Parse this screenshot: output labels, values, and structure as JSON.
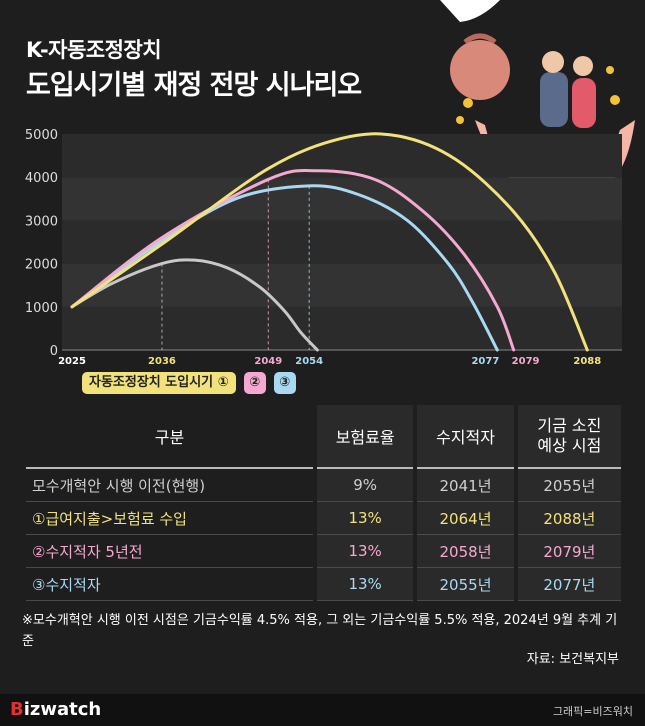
{
  "header": {
    "title_line1": "K-자동조정장치",
    "title_line2": "도입시기별 재정 전망 시나리오"
  },
  "chart_data": {
    "type": "line",
    "ylim": [
      0,
      5000
    ],
    "xlim": [
      2025,
      2092
    ],
    "y_ticks": [
      "0",
      "1000",
      "2000",
      "3000",
      "4000",
      "5000"
    ],
    "x_ticks": [
      "2025",
      "2036",
      "2049",
      "2054",
      "2077",
      "2079",
      "2088"
    ],
    "x_tick_values": [
      2025,
      2036,
      2049,
      2054,
      2077,
      2079,
      2088
    ],
    "x_tick_colors": [
      "#ffffff",
      "#f2e27c",
      "#f5a9d0",
      "#a9d9f1",
      "#a9d9f1",
      "#f5a9d0",
      "#f2e27c"
    ],
    "grid": "horizontal bands",
    "series": [
      {
        "name": "현행",
        "color": "#c8c8c8",
        "points": [
          [
            2025,
            1000
          ],
          [
            2030,
            1550
          ],
          [
            2036,
            2000
          ],
          [
            2040,
            2080
          ],
          [
            2044,
            1900
          ],
          [
            2048,
            1450
          ],
          [
            2051,
            900
          ],
          [
            2053,
            400
          ],
          [
            2055,
            0
          ]
        ]
      },
      {
        "name": "③",
        "color": "#a9d9f1",
        "points": [
          [
            2025,
            1000
          ],
          [
            2035,
            2400
          ],
          [
            2045,
            3500
          ],
          [
            2054,
            3800
          ],
          [
            2060,
            3600
          ],
          [
            2066,
            3000
          ],
          [
            2071,
            2000
          ],
          [
            2074,
            1100
          ],
          [
            2077,
            0
          ]
        ]
      },
      {
        "name": "②",
        "color": "#f5a9d0",
        "points": [
          [
            2025,
            1000
          ],
          [
            2036,
            2600
          ],
          [
            2049,
            3950
          ],
          [
            2055,
            4150
          ],
          [
            2062,
            3950
          ],
          [
            2068,
            3200
          ],
          [
            2073,
            2200
          ],
          [
            2077,
            1000
          ],
          [
            2079,
            0
          ]
        ]
      },
      {
        "name": "①",
        "color": "#f2e27c",
        "points": [
          [
            2025,
            1000
          ],
          [
            2036,
            2450
          ],
          [
            2049,
            4200
          ],
          [
            2058,
            4900
          ],
          [
            2065,
            4950
          ],
          [
            2072,
            4400
          ],
          [
            2079,
            3200
          ],
          [
            2084,
            1800
          ],
          [
            2088,
            0
          ]
        ]
      }
    ],
    "guide_lines": [
      {
        "x": 2036,
        "y": 2000,
        "color": "#c8c8c8"
      },
      {
        "x": 2049,
        "y": 3950,
        "color": "#f5a9d0"
      },
      {
        "x": 2054,
        "y": 3800,
        "color": "#a9d9f1"
      }
    ]
  },
  "legend": {
    "label1": "자동조정장치 도입시기 ①",
    "label2": "②",
    "label3": "③"
  },
  "table": {
    "headers": [
      "구분",
      "보험료율",
      "수지적자",
      "기금 소진\n예상 시점"
    ],
    "rows": [
      [
        "모수개혁안 시행 이전(현행)",
        "9%",
        "2041년",
        "2055년"
      ],
      [
        "①급여지출>보험료 수입",
        "13%",
        "2064년",
        "2088년"
      ],
      [
        "②수지적자 5년전",
        "13%",
        "2058년",
        "2079년"
      ],
      [
        "③수지적자",
        "13%",
        "2055년",
        "2077년"
      ]
    ]
  },
  "note": "※모수개혁안 시행 이전 시점은 기금수익률 4.5% 적용, 그 외는 기금수익률 5.5% 적용, 2024년 9월 추계 기준",
  "source": "자료: 보건복지부",
  "footer": {
    "logo_b": "B",
    "logo_rest": "izwatch",
    "credit": "그래픽=비즈워치"
  },
  "colors": {
    "background": "#1e1e1e",
    "yellow": "#f2e27c",
    "pink": "#f5a9d0",
    "blue": "#a9d9f1",
    "gray": "#c8c8c8"
  },
  "illustration_icon": "hands-holding-elderly-couple-money-bag-icon"
}
